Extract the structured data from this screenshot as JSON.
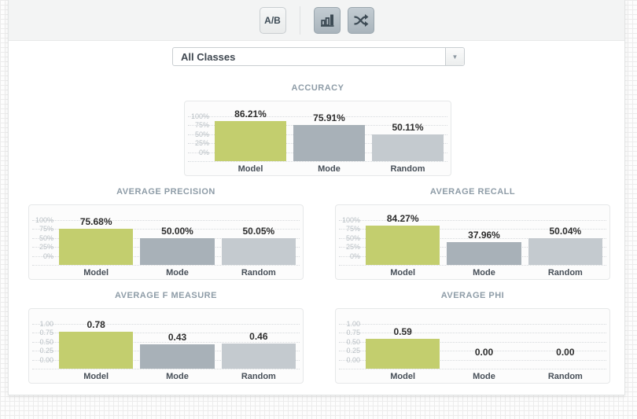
{
  "toolbar": {
    "ab_button_label": "A/B",
    "view_buttons": [
      {
        "name": "bar-chart-view",
        "icon": "bar-chart-icon"
      },
      {
        "name": "shuffle-view",
        "icon": "shuffle-icon"
      }
    ]
  },
  "filter": {
    "selected_option": "All Classes"
  },
  "colors": {
    "model_bar": "#c3ce6e",
    "mode_bar": "#a8b1b8",
    "random_bar": "#c4cacf",
    "title_text": "#8e9ca7"
  },
  "chart_data": [
    {
      "type": "bar",
      "title": "ACCURACY",
      "categories": [
        "Model",
        "Mode",
        "Random"
      ],
      "values": [
        86.21,
        75.91,
        50.11
      ],
      "value_labels": [
        "86.21%",
        "75.91%",
        "50.11%"
      ],
      "yticks": [
        "100%",
        "75%",
        "50%",
        "25%",
        "0%"
      ],
      "ylim": [
        0,
        100
      ],
      "unit": "percent",
      "grid": "dotted",
      "legend": "none"
    },
    {
      "type": "bar",
      "title": "AVERAGE PRECISION",
      "categories": [
        "Model",
        "Mode",
        "Random"
      ],
      "values": [
        75.68,
        50.0,
        50.05
      ],
      "value_labels": [
        "75.68%",
        "50.00%",
        "50.05%"
      ],
      "yticks": [
        "100%",
        "75%",
        "50%",
        "25%",
        "0%"
      ],
      "ylim": [
        0,
        100
      ],
      "unit": "percent",
      "grid": "dotted",
      "legend": "none"
    },
    {
      "type": "bar",
      "title": "AVERAGE RECALL",
      "categories": [
        "Model",
        "Mode",
        "Random"
      ],
      "values": [
        84.27,
        37.96,
        50.04
      ],
      "value_labels": [
        "84.27%",
        "37.96%",
        "50.04%"
      ],
      "yticks": [
        "100%",
        "75%",
        "50%",
        "25%",
        "0%"
      ],
      "ylim": [
        0,
        100
      ],
      "unit": "percent",
      "grid": "dotted",
      "legend": "none"
    },
    {
      "type": "bar",
      "title": "AVERAGE F MEASURE",
      "categories": [
        "Model",
        "Mode",
        "Random"
      ],
      "values": [
        0.78,
        0.43,
        0.46
      ],
      "value_labels": [
        "0.78",
        "0.43",
        "0.46"
      ],
      "yticks": [
        "1.00",
        "0.75",
        "0.50",
        "0.25",
        "0.00"
      ],
      "ylim": [
        0,
        1
      ],
      "unit": "ratio",
      "grid": "dotted",
      "legend": "none"
    },
    {
      "type": "bar",
      "title": "AVERAGE PHI",
      "categories": [
        "Model",
        "Mode",
        "Random"
      ],
      "values": [
        0.59,
        0.0,
        0.0
      ],
      "value_labels": [
        "0.59",
        "0.00",
        "0.00"
      ],
      "yticks": [
        "1.00",
        "0.75",
        "0.50",
        "0.25",
        "0.00"
      ],
      "ylim": [
        0,
        1
      ],
      "unit": "ratio",
      "grid": "dotted",
      "legend": "none"
    }
  ]
}
